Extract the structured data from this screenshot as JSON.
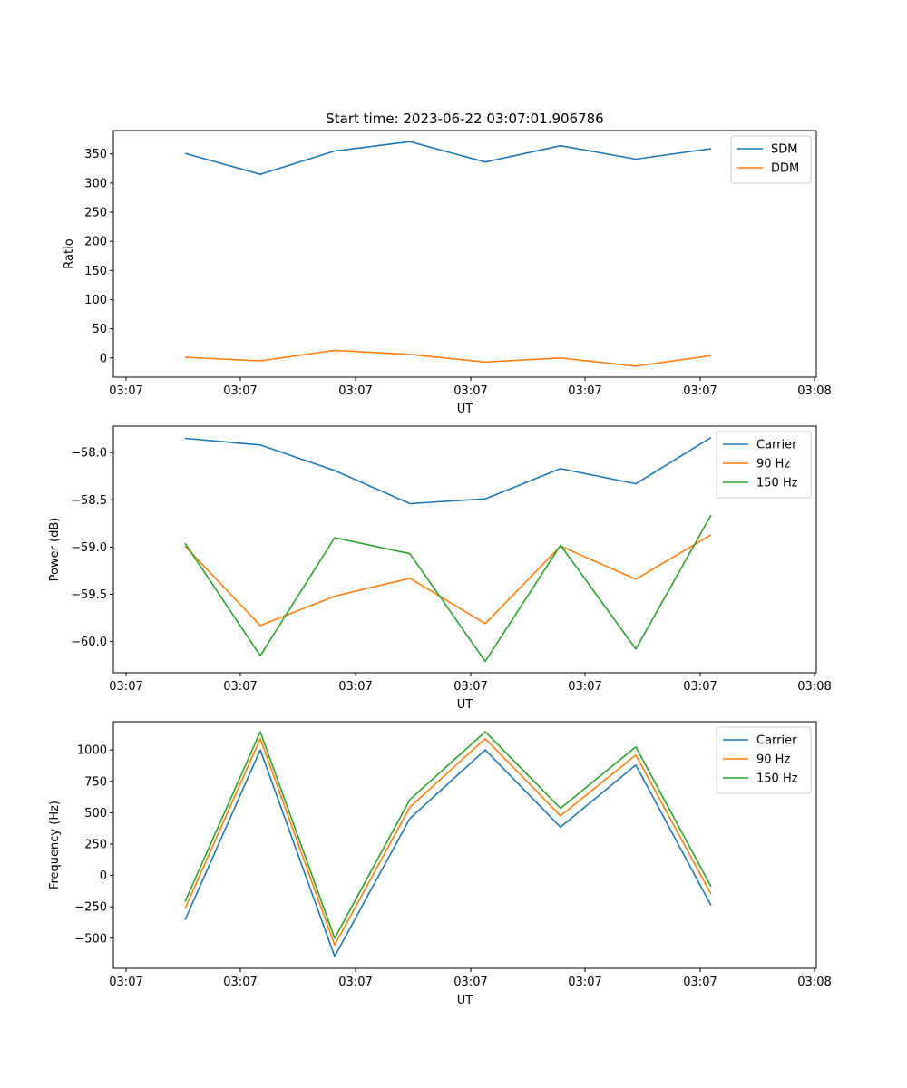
{
  "chart_data": [
    {
      "type": "line",
      "title": "Start time: 2023-06-22 03:07:01.906786",
      "xlabel": "UT",
      "ylabel": "Ratio",
      "x_ticks": [
        "03:07",
        "03:07",
        "03:07",
        "03:07",
        "03:07",
        "03:07",
        "03:08"
      ],
      "ylim": [
        -33,
        390
      ],
      "y_ticks": [
        0,
        50,
        100,
        150,
        200,
        250,
        300,
        350
      ],
      "legend": "top-right",
      "grid": false,
      "series": [
        {
          "name": "SDM",
          "color": "#1f77b4",
          "values": [
            351,
            315,
            355,
            371,
            336,
            364,
            341,
            359
          ]
        },
        {
          "name": "DDM",
          "color": "#ff7f0e",
          "values": [
            1,
            -5,
            13,
            6,
            -7,
            0,
            -14,
            4
          ]
        }
      ]
    },
    {
      "type": "line",
      "title": "",
      "xlabel": "UT",
      "ylabel": "Power (dB)",
      "x_ticks": [
        "03:07",
        "03:07",
        "03:07",
        "03:07",
        "03:07",
        "03:07",
        "03:08"
      ],
      "ylim": [
        -60.33,
        -57.72
      ],
      "y_ticks": [
        "−60.0",
        "−59.5",
        "−59.0",
        "−58.5",
        "−58.0"
      ],
      "y_tick_values": [
        -60.0,
        -59.5,
        -59.0,
        -58.5,
        -58.0
      ],
      "legend": "top-right",
      "grid": false,
      "series": [
        {
          "name": "Carrier",
          "color": "#1f77b4",
          "values": [
            -57.85,
            -57.92,
            -58.19,
            -58.54,
            -58.49,
            -58.17,
            -58.33,
            -57.84
          ]
        },
        {
          "name": "90 Hz",
          "color": "#ff7f0e",
          "values": [
            -58.99,
            -59.83,
            -59.52,
            -59.33,
            -59.81,
            -58.99,
            -59.34,
            -58.87
          ]
        },
        {
          "name": "150 Hz",
          "color": "#2ca02c",
          "values": [
            -58.96,
            -60.15,
            -58.9,
            -59.07,
            -60.21,
            -58.98,
            -60.08,
            -58.66
          ]
        }
      ]
    },
    {
      "type": "line",
      "title": "",
      "xlabel": "UT",
      "ylabel": "Frequency (Hz)",
      "x_ticks": [
        "03:07",
        "03:07",
        "03:07",
        "03:07",
        "03:07",
        "03:07",
        "03:08"
      ],
      "ylim": [
        -740,
        1225
      ],
      "y_ticks": [
        "−500",
        "−250",
        "0",
        "250",
        "500",
        "750",
        "1000"
      ],
      "y_tick_values": [
        -500,
        -250,
        0,
        250,
        500,
        750,
        1000
      ],
      "legend": "top-right",
      "grid": false,
      "series": [
        {
          "name": "Carrier",
          "color": "#1f77b4",
          "values": [
            -355,
            1000,
            -645,
            455,
            1000,
            385,
            880,
            -240
          ]
        },
        {
          "name": "90 Hz",
          "color": "#ff7f0e",
          "values": [
            -265,
            1090,
            -555,
            545,
            1090,
            475,
            960,
            -150
          ]
        },
        {
          "name": "150 Hz",
          "color": "#2ca02c",
          "values": [
            -210,
            1145,
            -500,
            605,
            1145,
            535,
            1025,
            -90
          ]
        }
      ]
    }
  ]
}
